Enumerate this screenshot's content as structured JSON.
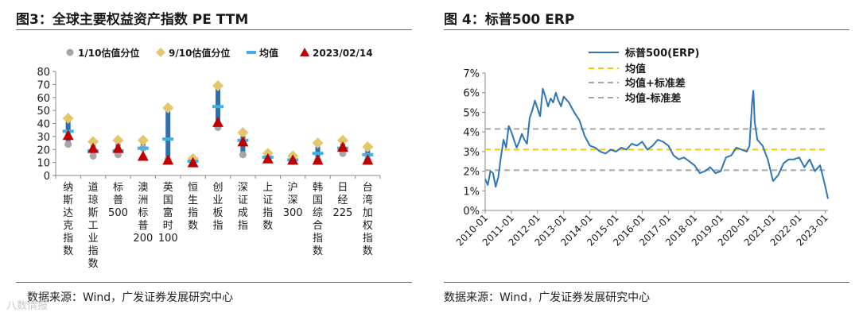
{
  "left": {
    "title": "图3：全球主要权益资产指数 PE TTM",
    "source": "数据来源：Wind，广发证券发展研究中心",
    "chart_data": {
      "type": "range-marker",
      "title": "全球主要权益资产指数 PE TTM",
      "categories": [
        "纳斯达克指数",
        "道琼斯工业指数",
        "标普500",
        "澳洲标普200",
        "英国富时100",
        "恒生指数",
        "创业板指",
        "深证成指",
        "上证指数",
        "沪深300",
        "韩国综合指数",
        "日经225",
        "台湾加权指数"
      ],
      "legend": [
        "1/10估值分位",
        "9/10估值分位",
        "均值",
        "2023/02/14"
      ],
      "p10": [
        24,
        15,
        16,
        21,
        12,
        9,
        37,
        16,
        12,
        11,
        12,
        17,
        12
      ],
      "p90": [
        44,
        26,
        27,
        27,
        52,
        13,
        69,
        33,
        17,
        15,
        25,
        27,
        22
      ],
      "mean": [
        34,
        19,
        19,
        21,
        28,
        11,
        53,
        27,
        14,
        12,
        17,
        21,
        16
      ],
      "latest": [
        31,
        21,
        21,
        15,
        12,
        10,
        41,
        26,
        13,
        12,
        12,
        22,
        12
      ],
      "ylim": [
        0,
        80
      ],
      "yticks": [
        0,
        10,
        20,
        30,
        40,
        50,
        60,
        70,
        80
      ],
      "colors": {
        "p10": "#a6a6a6",
        "p90": "#e3c76b",
        "mean": "#3fb1e6",
        "latest": "#c00000",
        "bar": "#2e6fae"
      }
    }
  },
  "right": {
    "title": "图 4：标普500 ERP",
    "source": "数据来源：Wind，广发证券发展研究中心",
    "chart_data": {
      "type": "line",
      "title": "标普500 ERP",
      "series": [
        {
          "name": "标普500(ERP)",
          "color": "#2e75b6",
          "x": [
            2010.0,
            2010.1,
            2010.2,
            2010.3,
            2010.4,
            2010.5,
            2010.6,
            2010.7,
            2010.8,
            2010.9,
            2011.0,
            2011.1,
            2011.2,
            2011.3,
            2011.4,
            2011.5,
            2011.6,
            2011.7,
            2011.8,
            2011.9,
            2012.0,
            2012.1,
            2012.2,
            2012.3,
            2012.4,
            2012.5,
            2012.6,
            2012.7,
            2012.8,
            2012.9,
            2013.0,
            2013.2,
            2013.4,
            2013.6,
            2013.8,
            2014.0,
            2014.2,
            2014.4,
            2014.6,
            2014.8,
            2015.0,
            2015.2,
            2015.4,
            2015.6,
            2015.8,
            2016.0,
            2016.2,
            2016.4,
            2016.6,
            2016.8,
            2017.0,
            2017.2,
            2017.4,
            2017.6,
            2017.8,
            2018.0,
            2018.2,
            2018.4,
            2018.6,
            2018.8,
            2019.0,
            2019.2,
            2019.4,
            2019.6,
            2019.8,
            2020.0,
            2020.1,
            2020.2,
            2020.25,
            2020.3,
            2020.4,
            2020.6,
            2020.8,
            2021.0,
            2021.2,
            2021.4,
            2021.6,
            2021.8,
            2022.0,
            2022.2,
            2022.4,
            2022.6,
            2022.8,
            2023.0,
            2023.1
          ],
          "y": [
            1.6,
            1.3,
            2.0,
            1.9,
            1.2,
            1.7,
            2.7,
            3.6,
            3.2,
            4.3,
            4.0,
            3.6,
            3.2,
            3.5,
            3.9,
            3.6,
            3.4,
            4.7,
            5.1,
            5.6,
            5.2,
            4.8,
            6.2,
            5.8,
            5.3,
            5.7,
            5.5,
            6.0,
            5.6,
            5.3,
            5.8,
            5.5,
            5.0,
            4.6,
            3.8,
            3.3,
            3.2,
            3.0,
            2.9,
            3.1,
            3.0,
            3.2,
            3.1,
            3.4,
            3.3,
            3.5,
            3.1,
            3.3,
            3.6,
            3.5,
            3.3,
            2.8,
            2.6,
            2.7,
            2.5,
            2.3,
            1.9,
            2.0,
            2.2,
            1.9,
            2.0,
            2.7,
            2.8,
            3.2,
            3.1,
            3.0,
            3.3,
            5.5,
            6.1,
            4.5,
            3.6,
            3.3,
            2.6,
            1.5,
            1.8,
            2.4,
            2.6,
            2.6,
            2.7,
            2.2,
            2.6,
            2.0,
            2.3,
            1.2,
            0.6
          ]
        },
        {
          "name": "均值",
          "color": "#f0c419",
          "y_const": 3.1
        },
        {
          "name": "均值+标准差",
          "color": "#a6a6a6",
          "y_const": 4.15
        },
        {
          "name": "均值-标准差",
          "color": "#a6a6a6",
          "y_const": 2.05
        }
      ],
      "xlim": [
        2010.0,
        2023.1
      ],
      "xticks": [
        "2010-01",
        "2011-01",
        "2012-01",
        "2013-01",
        "2014-01",
        "2015-01",
        "2016-01",
        "2017-01",
        "2018-01",
        "2019-01",
        "2020-01",
        "2021-01",
        "2022-01",
        "2023-01"
      ],
      "ylim": [
        0,
        7
      ],
      "yticks": [
        "0%",
        "1%",
        "2%",
        "3%",
        "4%",
        "5%",
        "6%",
        "7%"
      ],
      "legend_position": "top-left"
    }
  },
  "watermark": "八数情报"
}
